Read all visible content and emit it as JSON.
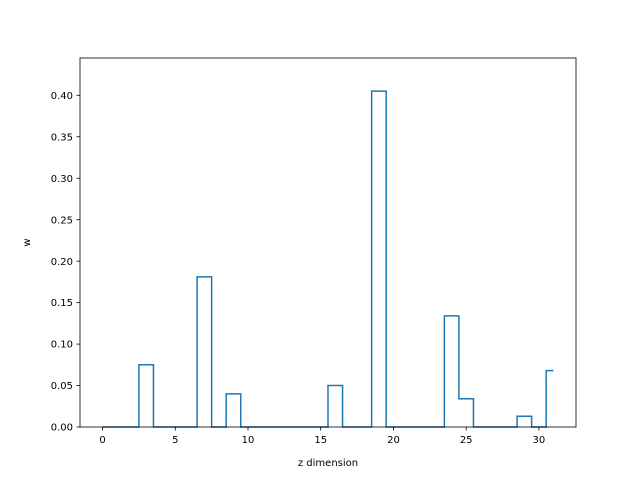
{
  "chart_data": {
    "type": "line",
    "drawstyle": "steps-mid",
    "title": "",
    "xlabel": "z dimension",
    "ylabel": "w",
    "xlim": [
      -1.55,
      32.55
    ],
    "ylim": [
      0.0,
      0.445
    ],
    "x_ticks": [
      0,
      5,
      10,
      15,
      20,
      25,
      30
    ],
    "x_tick_labels": [
      "0",
      "5",
      "10",
      "15",
      "20",
      "25",
      "30"
    ],
    "y_ticks": [
      0.0,
      0.05,
      0.1,
      0.15,
      0.2,
      0.25,
      0.3,
      0.35,
      0.4
    ],
    "y_tick_labels": [
      "0.00",
      "0.05",
      "0.10",
      "0.15",
      "0.20",
      "0.25",
      "0.30",
      "0.35",
      "0.40"
    ],
    "grid": false,
    "series": [
      {
        "color": "#1f77b4",
        "x": [
          0,
          1,
          2,
          3,
          4,
          5,
          6,
          7,
          8,
          9,
          10,
          11,
          12,
          13,
          14,
          15,
          16,
          17,
          18,
          19,
          20,
          21,
          22,
          23,
          24,
          25,
          26,
          27,
          28,
          29,
          30,
          31
        ],
        "y": [
          0,
          0,
          0,
          0.075,
          0,
          0,
          0,
          0.181,
          0,
          0.04,
          0,
          0,
          0,
          0,
          0,
          0,
          0.05,
          0,
          0,
          0.405,
          0,
          0,
          0,
          0,
          0.134,
          0.034,
          0,
          0,
          0,
          0.013,
          0,
          0.068
        ]
      }
    ]
  }
}
